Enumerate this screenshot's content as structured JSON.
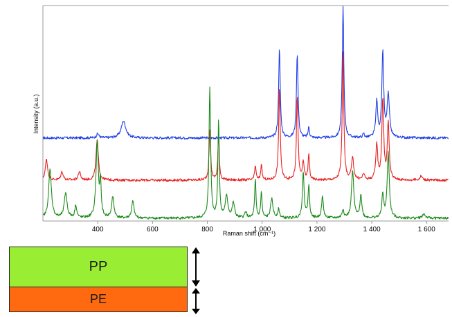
{
  "colors": {
    "pp_layer": "#99ee33",
    "pe_layer": "#ff6a10",
    "series_blue": "#1f3fe6",
    "series_red": "#e82020",
    "series_green": "#1a8a1a",
    "axis": "#9a9a9a"
  },
  "chart_data": {
    "type": "line",
    "title": "",
    "xlabel": "Raman shift (cm⁻¹)",
    "ylabel": "Intensity (a.u.)",
    "xlim": [
      200,
      1680
    ],
    "ylim": [
      0,
      1
    ],
    "x_ticks": [
      400,
      600,
      800,
      1000,
      1200,
      1400,
      1600
    ],
    "x_tick_labels": [
      "400",
      "600",
      "800",
      "1 000",
      "1 200",
      "1 400",
      "1 600"
    ],
    "grid": false,
    "legend": "none",
    "y_tick_labels": false,
    "series": [
      {
        "color": "#1f3fe6",
        "baseline": 0.38,
        "peaks": [
          [
            494,
            0.08,
            10
          ],
          [
            400,
            0.02,
            5
          ],
          [
            1063,
            0.42,
            3.5
          ],
          [
            1128,
            0.4,
            3.5
          ],
          [
            1170,
            0.05,
            3
          ],
          [
            1295,
            0.62,
            3.5
          ],
          [
            1370,
            0.02,
            3
          ],
          [
            1418,
            0.17,
            4
          ],
          [
            1440,
            0.4,
            4
          ],
          [
            1460,
            0.2,
            5
          ]
        ]
      },
      {
        "color": "#e82020",
        "baseline": 0.18,
        "peaks": [
          [
            213,
            0.1,
            5
          ],
          [
            270,
            0.04,
            5
          ],
          [
            333,
            0.04,
            5
          ],
          [
            398,
            0.19,
            5
          ],
          [
            809,
            0.23,
            3.5
          ],
          [
            841,
            0.22,
            3
          ],
          [
            975,
            0.07,
            3
          ],
          [
            997,
            0.07,
            3
          ],
          [
            1063,
            0.43,
            3.5
          ],
          [
            1128,
            0.4,
            3.5
          ],
          [
            1150,
            0.08,
            4
          ],
          [
            1170,
            0.12,
            3
          ],
          [
            1295,
            0.6,
            3.5
          ],
          [
            1330,
            0.1,
            5
          ],
          [
            1370,
            0.03,
            4
          ],
          [
            1418,
            0.17,
            4
          ],
          [
            1440,
            0.38,
            4
          ],
          [
            1460,
            0.27,
            4
          ],
          [
            1580,
            0.02,
            5
          ]
        ]
      },
      {
        "color": "#1a8a1a",
        "baseline": 0.0,
        "peaks": [
          [
            226,
            0.23,
            6
          ],
          [
            283,
            0.12,
            6
          ],
          [
            320,
            0.06,
            4
          ],
          [
            398,
            0.36,
            5
          ],
          [
            410,
            0.16,
            3
          ],
          [
            455,
            0.1,
            5
          ],
          [
            528,
            0.08,
            5
          ],
          [
            809,
            0.62,
            3.5
          ],
          [
            841,
            0.46,
            3
          ],
          [
            870,
            0.1,
            6
          ],
          [
            895,
            0.07,
            5
          ],
          [
            940,
            0.03,
            4
          ],
          [
            975,
            0.18,
            3
          ],
          [
            997,
            0.12,
            3
          ],
          [
            1035,
            0.09,
            5
          ],
          [
            1060,
            0.04,
            4
          ],
          [
            1150,
            0.21,
            4
          ],
          [
            1170,
            0.15,
            3.5
          ],
          [
            1220,
            0.1,
            4
          ],
          [
            1295,
            0.04,
            4
          ],
          [
            1330,
            0.22,
            5
          ],
          [
            1360,
            0.11,
            4
          ],
          [
            1440,
            0.11,
            4
          ],
          [
            1460,
            0.31,
            4.5
          ],
          [
            1590,
            0.02,
            6
          ]
        ]
      }
    ]
  },
  "layers": {
    "top_label": "PP",
    "bottom_label": "PE"
  }
}
